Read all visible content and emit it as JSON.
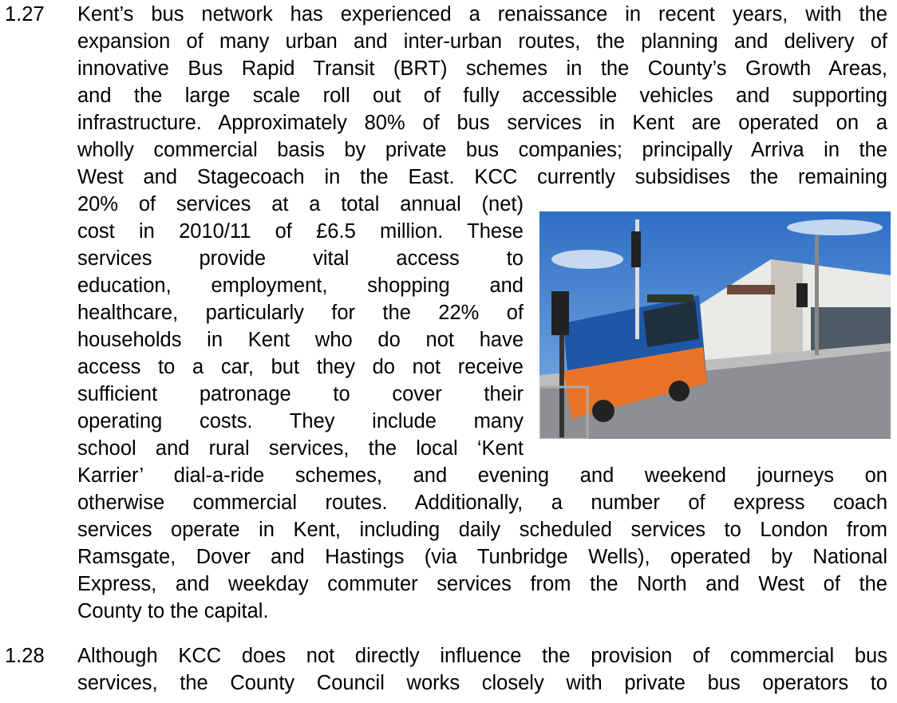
{
  "paragraphs": [
    {
      "number": "1.27",
      "lines": [
        "Kent’s bus network has experienced a renaissance in recent years, with the",
        "expansion of many urban and inter-urban routes, the planning and delivery of",
        "innovative Bus Rapid Transit (BRT) schemes in the County’s Growth Areas,",
        "and the large scale roll out of fully accessible vehicles and supporting",
        "infrastructure. Approximately 80% of bus services in Kent are operated on a",
        "wholly commercial basis by private bus companies; principally Arriva in the",
        "West and Stagecoach in the East. KCC currently subsidises the remaining",
        "20% of services at a total annual (net)",
        "cost in 2010/11 of £6.5 million. These",
        "services provide vital access to",
        "education, employment, shopping and",
        "healthcare, particularly for the 22% of",
        "households in Kent who do not have",
        "access to a car, but they do not receive",
        "sufficient patronage to cover their",
        "operating costs. They include many",
        "school and rural services, the local ‘Kent",
        "Karrier’ dial-a-ride schemes, and evening and weekend journeys on",
        "otherwise commercial routes. Additionally, a number of express coach",
        "services operate in Kent, including daily scheduled services to London from",
        "Ramsgate, Dover and Hastings (via Tunbridge Wells), operated by National",
        "Express, and weekday commuter services from the North and West of the",
        "County to the capital."
      ]
    },
    {
      "number": "1.28",
      "lines": [
        "Although KCC does not directly influence the provision of commercial bus",
        "services, the County Council works closely with private bus operators to"
      ]
    }
  ]
}
